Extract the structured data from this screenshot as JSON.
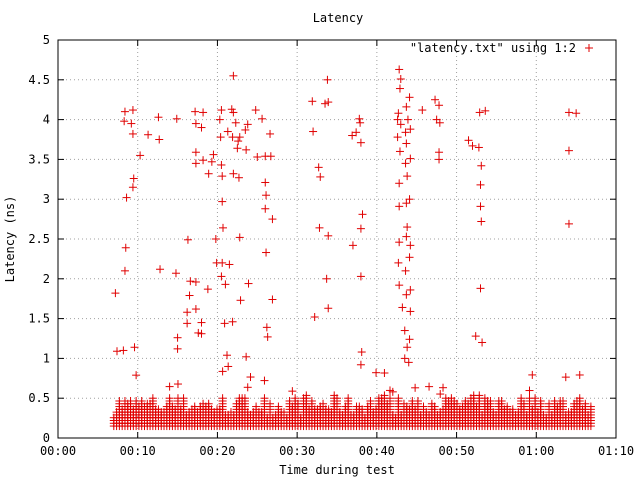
{
  "chart_data": {
    "type": "scatter",
    "title": "Latency",
    "xlabel": "Time during test",
    "ylabel": "Latency (ns)",
    "xlim": [
      0,
      70
    ],
    "ylim": [
      0,
      5
    ],
    "x_tick_values": [
      0,
      10,
      20,
      30,
      40,
      50,
      60,
      70
    ],
    "x_tick_labels": [
      "00:00",
      "00:10",
      "00:20",
      "00:30",
      "00:40",
      "00:50",
      "01:00",
      "01:10"
    ],
    "y_tick_values": [
      0,
      0.5,
      1,
      1.5,
      2,
      2.5,
      3,
      3.5,
      4,
      4.5,
      5
    ],
    "y_tick_labels": [
      "0",
      "0.5",
      "1",
      "1.5",
      "2",
      "2.5",
      "3",
      "3.5",
      "4",
      "4.5",
      "5"
    ],
    "grid": true,
    "legend_position": "top-right",
    "color": "#e00000",
    "series": [
      {
        "name": "\"latency.txt\" using 1:2",
        "marker": "plus",
        "points": [
          [
            7.2,
            1.82
          ],
          [
            7.4,
            1.09
          ],
          [
            8.2,
            1.1
          ],
          [
            8.4,
            4.1
          ],
          [
            8.3,
            3.98
          ],
          [
            8.6,
            3.02
          ],
          [
            8.5,
            2.39
          ],
          [
            8.4,
            2.1
          ],
          [
            9.4,
            4.12
          ],
          [
            9.2,
            3.95
          ],
          [
            9.4,
            3.82
          ],
          [
            9.5,
            3.26
          ],
          [
            9.4,
            3.15
          ],
          [
            9.6,
            1.14
          ],
          [
            10.3,
            3.55
          ],
          [
            11.3,
            3.81
          ],
          [
            12.6,
            4.03
          ],
          [
            12.7,
            3.75
          ],
          [
            12.8,
            2.12
          ],
          [
            14.8,
            2.07
          ],
          [
            14.9,
            4.01
          ],
          [
            15.0,
            1.26
          ],
          [
            15.0,
            1.12
          ],
          [
            16.3,
            2.49
          ],
          [
            16.2,
            1.58
          ],
          [
            16.2,
            1.44
          ],
          [
            16.5,
            1.79
          ],
          [
            16.6,
            1.97
          ],
          [
            17.2,
            4.1
          ],
          [
            17.3,
            3.95
          ],
          [
            17.3,
            3.59
          ],
          [
            17.3,
            3.45
          ],
          [
            17.3,
            1.96
          ],
          [
            17.3,
            1.62
          ],
          [
            17.6,
            1.32
          ],
          [
            18.0,
            1.45
          ],
          [
            18.0,
            1.31
          ],
          [
            18.2,
            4.09
          ],
          [
            18.0,
            3.9
          ],
          [
            18.2,
            3.49
          ],
          [
            18.9,
            3.32
          ],
          [
            18.8,
            1.87
          ],
          [
            19.3,
            3.47
          ],
          [
            19.5,
            3.56
          ],
          [
            19.8,
            2.5
          ],
          [
            19.9,
            2.2
          ],
          [
            20.3,
            4.0
          ],
          [
            20.5,
            4.12
          ],
          [
            20.4,
            3.78
          ],
          [
            20.5,
            3.43
          ],
          [
            20.6,
            3.29
          ],
          [
            20.6,
            2.97
          ],
          [
            20.7,
            2.64
          ],
          [
            20.6,
            2.2
          ],
          [
            20.5,
            2.03
          ],
          [
            21.0,
            1.93
          ],
          [
            20.9,
            1.44
          ],
          [
            21.2,
            1.04
          ],
          [
            21.3,
            3.85
          ],
          [
            21.5,
            2.18
          ],
          [
            22.0,
            4.55
          ],
          [
            21.8,
            4.13
          ],
          [
            22.0,
            4.09
          ],
          [
            21.9,
            3.78
          ],
          [
            22.0,
            3.32
          ],
          [
            21.9,
            1.46
          ],
          [
            22.3,
            3.96
          ],
          [
            22.5,
            3.64
          ],
          [
            22.6,
            3.73
          ],
          [
            22.8,
            3.78
          ],
          [
            22.7,
            3.27
          ],
          [
            22.8,
            2.52
          ],
          [
            22.9,
            1.73
          ],
          [
            23.5,
            3.87
          ],
          [
            23.6,
            3.62
          ],
          [
            23.8,
            3.94
          ],
          [
            23.9,
            1.94
          ],
          [
            23.6,
            1.02
          ],
          [
            24.8,
            4.12
          ],
          [
            25.0,
            3.53
          ],
          [
            25.6,
            4.01
          ],
          [
            26.0,
            3.54
          ],
          [
            26.0,
            3.21
          ],
          [
            26.1,
            3.05
          ],
          [
            26.0,
            2.88
          ],
          [
            26.1,
            2.33
          ],
          [
            26.2,
            1.39
          ],
          [
            26.3,
            1.27
          ],
          [
            26.6,
            3.82
          ],
          [
            26.7,
            3.54
          ],
          [
            26.9,
            2.75
          ],
          [
            26.9,
            1.74
          ],
          [
            31.9,
            4.23
          ],
          [
            32.0,
            3.85
          ],
          [
            32.2,
            1.52
          ],
          [
            32.7,
            3.4
          ],
          [
            32.9,
            3.28
          ],
          [
            32.8,
            2.64
          ],
          [
            33.5,
            4.2
          ],
          [
            33.8,
            4.5
          ],
          [
            33.9,
            4.22
          ],
          [
            33.9,
            2.54
          ],
          [
            33.7,
            2.0
          ],
          [
            33.9,
            1.63
          ],
          [
            36.9,
            3.8
          ],
          [
            37.0,
            2.42
          ],
          [
            37.4,
            3.84
          ],
          [
            37.8,
            4.01
          ],
          [
            37.9,
            3.96
          ],
          [
            38.0,
            3.71
          ],
          [
            38.2,
            2.81
          ],
          [
            38.0,
            2.63
          ],
          [
            38.0,
            2.03
          ],
          [
            38.1,
            1.08
          ],
          [
            38.0,
            0.92
          ],
          [
            42.6,
            4.0
          ],
          [
            42.8,
            4.63
          ],
          [
            43.0,
            4.51
          ],
          [
            42.9,
            4.39
          ],
          [
            42.7,
            4.08
          ],
          [
            43.0,
            3.94
          ],
          [
            42.6,
            3.78
          ],
          [
            42.9,
            3.6
          ],
          [
            42.8,
            3.2
          ],
          [
            42.8,
            2.91
          ],
          [
            42.8,
            2.46
          ],
          [
            42.7,
            2.2
          ],
          [
            42.8,
            1.92
          ],
          [
            43.2,
            1.64
          ],
          [
            43.7,
            4.16
          ],
          [
            43.9,
            4.0
          ],
          [
            43.6,
            3.84
          ],
          [
            43.7,
            3.7
          ],
          [
            43.6,
            3.45
          ],
          [
            43.8,
            3.29
          ],
          [
            43.7,
            2.95
          ],
          [
            43.8,
            2.65
          ],
          [
            43.7,
            2.53
          ],
          [
            43.6,
            2.1
          ],
          [
            43.7,
            1.8
          ],
          [
            43.5,
            1.35
          ],
          [
            43.8,
            1.14
          ],
          [
            43.5,
            1.0
          ],
          [
            44.1,
            4.28
          ],
          [
            44.2,
            3.88
          ],
          [
            44.2,
            3.51
          ],
          [
            44.1,
            3.0
          ],
          [
            44.2,
            2.42
          ],
          [
            44.1,
            2.27
          ],
          [
            44.2,
            1.86
          ],
          [
            44.2,
            1.59
          ],
          [
            44.1,
            1.24
          ],
          [
            44.0,
            0.95
          ],
          [
            45.7,
            4.12
          ],
          [
            47.3,
            4.25
          ],
          [
            47.5,
            4.0
          ],
          [
            47.8,
            4.18
          ],
          [
            47.9,
            3.96
          ],
          [
            47.8,
            3.59
          ],
          [
            47.8,
            3.5
          ],
          [
            51.5,
            3.74
          ],
          [
            52.0,
            3.67
          ],
          [
            52.4,
            1.28
          ],
          [
            52.9,
            4.09
          ],
          [
            52.8,
            3.65
          ],
          [
            53.1,
            3.42
          ],
          [
            53.0,
            3.18
          ],
          [
            53.0,
            2.91
          ],
          [
            53.1,
            2.72
          ],
          [
            53.0,
            1.88
          ],
          [
            53.2,
            1.2
          ],
          [
            53.6,
            4.11
          ],
          [
            64.1,
            4.09
          ],
          [
            64.1,
            3.61
          ],
          [
            64.1,
            2.69
          ],
          [
            65.0,
            4.08
          ]
        ],
        "baseline_band": {
          "x_range": [
            7,
            67
          ],
          "y_min": 0.15,
          "y_max_range": [
            0.27,
            0.55
          ],
          "upper_outliers_range": [
            0.55,
            0.9
          ]
        }
      }
    ]
  }
}
